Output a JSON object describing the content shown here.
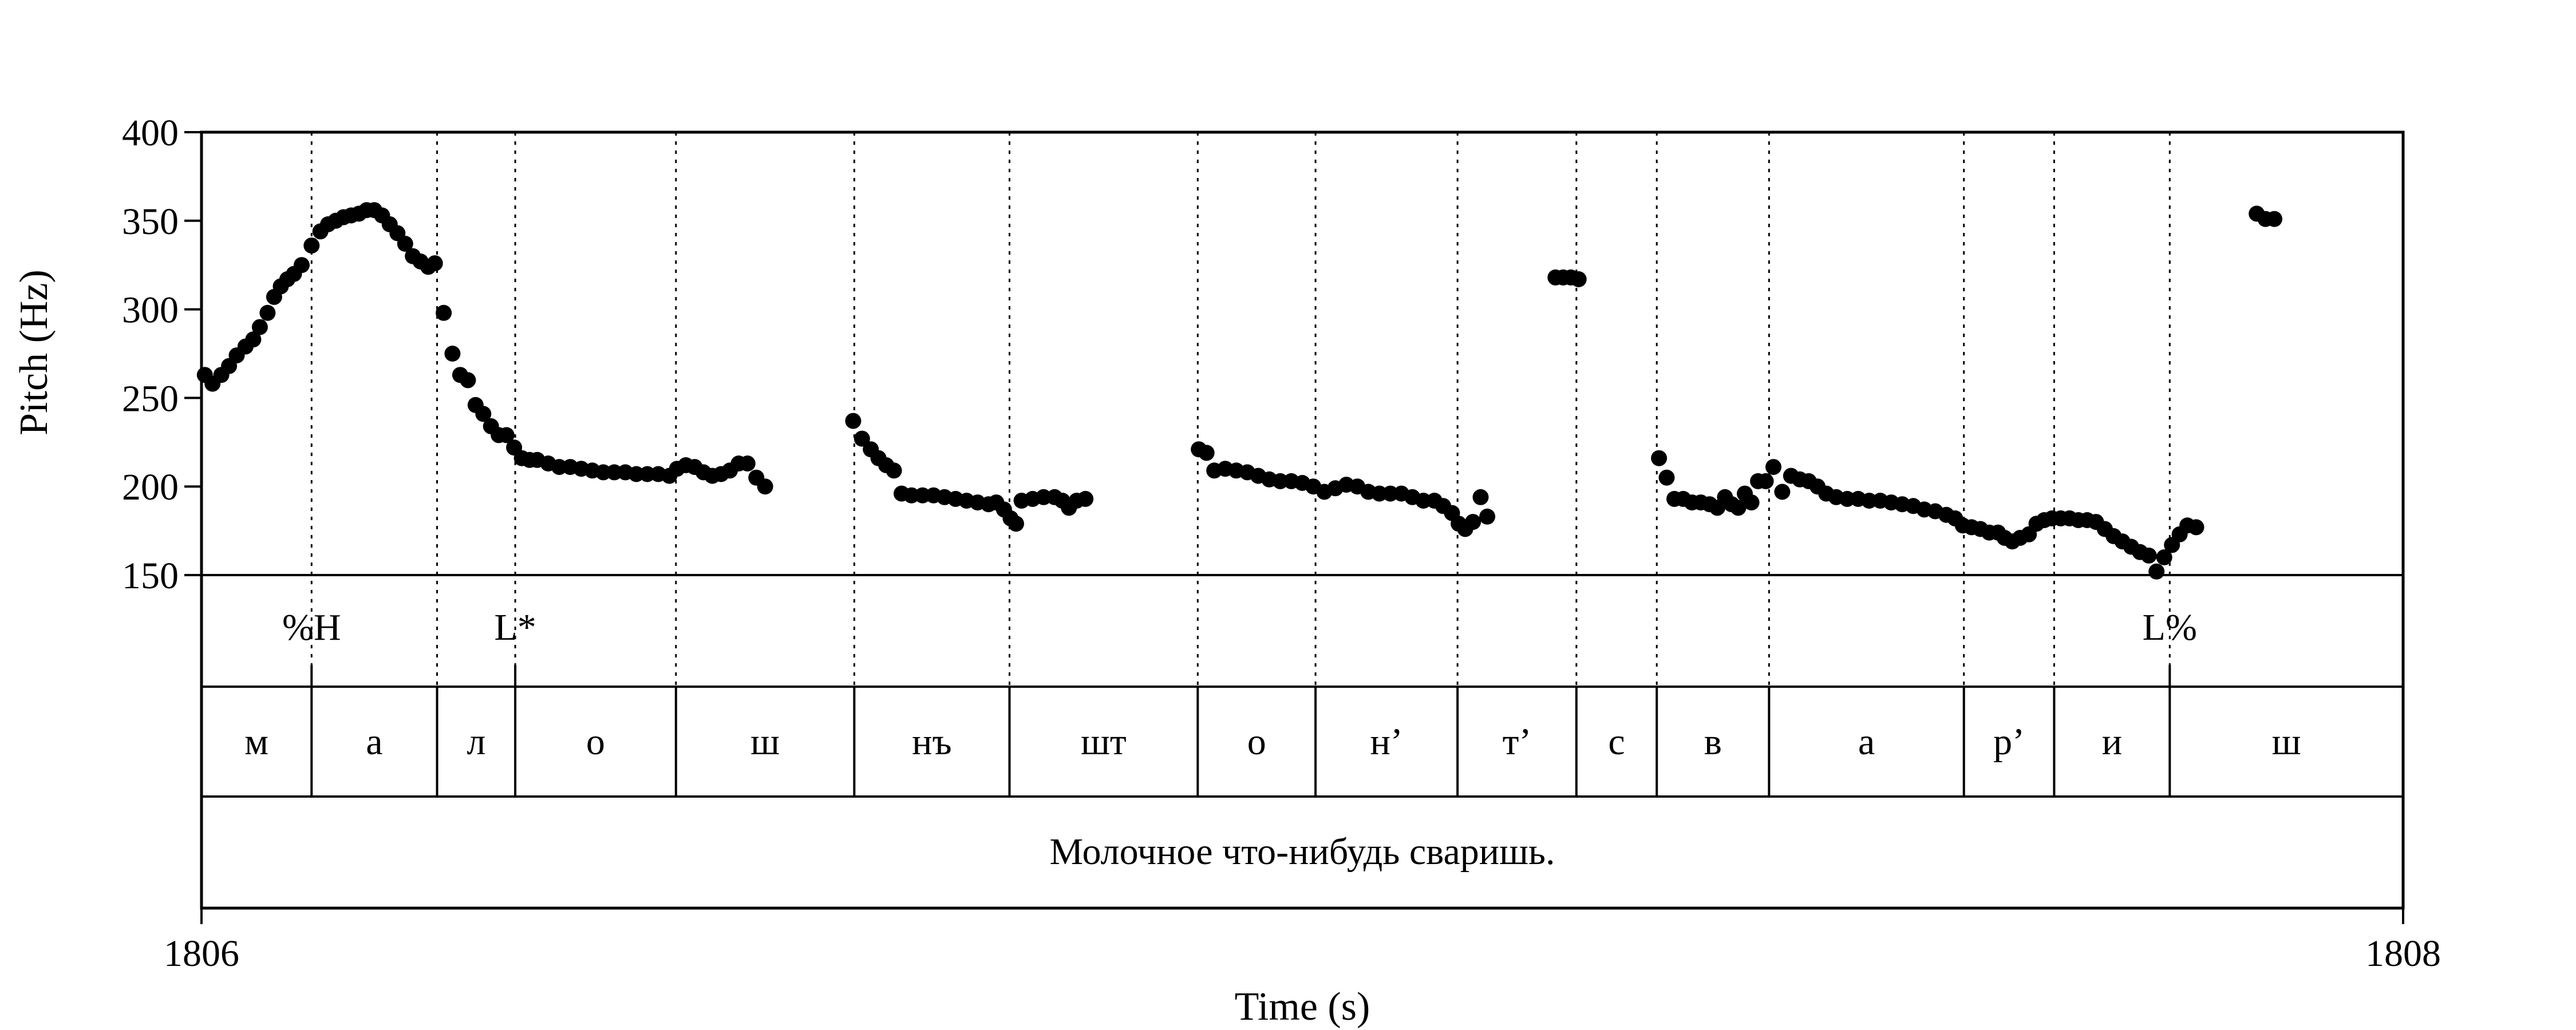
{
  "chart_data": {
    "type": "scatter",
    "xlabel": "Time (s)",
    "ylabel": "Pitch (Hz)",
    "xlim": [
      1806,
      1808
    ],
    "ylim": [
      150,
      400
    ],
    "x_ticks": [
      "1806",
      "1808"
    ],
    "y_ticks": [
      {
        "value": 150,
        "label": "150"
      },
      {
        "value": 200,
        "label": "200"
      },
      {
        "value": 250,
        "label": "250"
      },
      {
        "value": 300,
        "label": "300"
      },
      {
        "value": 350,
        "label": "350"
      },
      {
        "value": 400,
        "label": "400"
      }
    ],
    "grid": false,
    "legend": "none",
    "boundaries": [
      1806.1,
      1806.214,
      1806.285,
      1806.431,
      1806.593,
      1806.734,
      1806.905,
      1807.012,
      1807.141,
      1807.249,
      1807.322,
      1807.424,
      1807.601,
      1807.683,
      1807.788
    ],
    "tones": [
      {
        "time": 1806.1,
        "label": "%H"
      },
      {
        "time": 1806.285,
        "label": "L*"
      },
      {
        "time": 1807.788,
        "label": "L%"
      }
    ],
    "segments": [
      {
        "start": 1806.0,
        "end": 1806.1,
        "label": "м"
      },
      {
        "start": 1806.1,
        "end": 1806.214,
        "label": "а"
      },
      {
        "start": 1806.214,
        "end": 1806.285,
        "label": "л"
      },
      {
        "start": 1806.285,
        "end": 1806.431,
        "label": "о"
      },
      {
        "start": 1806.431,
        "end": 1806.593,
        "label": "ш"
      },
      {
        "start": 1806.593,
        "end": 1806.734,
        "label": "нъ"
      },
      {
        "start": 1806.734,
        "end": 1806.905,
        "label": "шт"
      },
      {
        "start": 1806.905,
        "end": 1807.012,
        "label": "о"
      },
      {
        "start": 1807.012,
        "end": 1807.141,
        "label": "н’"
      },
      {
        "start": 1807.141,
        "end": 1807.249,
        "label": "т’"
      },
      {
        "start": 1807.249,
        "end": 1807.322,
        "label": "с"
      },
      {
        "start": 1807.322,
        "end": 1807.424,
        "label": "в"
      },
      {
        "start": 1807.424,
        "end": 1807.601,
        "label": "а"
      },
      {
        "start": 1807.601,
        "end": 1807.683,
        "label": "р’"
      },
      {
        "start": 1807.683,
        "end": 1807.788,
        "label": "и"
      },
      {
        "start": 1807.788,
        "end": 1808.0,
        "label": "ш"
      }
    ],
    "sentence": "Молочное что-нибудь сваришь.",
    "series": [
      {
        "values": [
          [
            1806.003,
            263
          ],
          [
            1806.01,
            258
          ],
          [
            1806.018,
            263
          ],
          [
            1806.025,
            268
          ],
          [
            1806.032,
            274
          ],
          [
            1806.04,
            279
          ],
          [
            1806.047,
            283
          ],
          [
            1806.053,
            290
          ],
          [
            1806.06,
            298
          ],
          [
            1806.066,
            307
          ],
          [
            1806.072,
            313
          ],
          [
            1806.078,
            317
          ],
          [
            1806.084,
            320
          ],
          [
            1806.091,
            325
          ],
          [
            1806.1,
            336
          ],
          [
            1806.108,
            344
          ],
          [
            1806.115,
            348
          ],
          [
            1806.122,
            350
          ],
          [
            1806.129,
            352
          ],
          [
            1806.136,
            353
          ],
          [
            1806.143,
            354
          ],
          [
            1806.15,
            356
          ],
          [
            1806.157,
            356
          ],
          [
            1806.164,
            353
          ],
          [
            1806.171,
            348
          ],
          [
            1806.178,
            343
          ],
          [
            1806.185,
            337
          ],
          [
            1806.192,
            330
          ],
          [
            1806.199,
            327
          ],
          [
            1806.206,
            324
          ],
          [
            1806.212,
            326
          ],
          [
            1806.22,
            298
          ],
          [
            1806.228,
            275
          ],
          [
            1806.235,
            263
          ],
          [
            1806.242,
            260
          ],
          [
            1806.249,
            246
          ],
          [
            1806.256,
            241
          ],
          [
            1806.263,
            234
          ],
          [
            1806.27,
            229
          ],
          [
            1806.277,
            229
          ],
          [
            1806.284,
            222
          ],
          [
            1806.291,
            216
          ],
          [
            1806.298,
            215
          ],
          [
            1806.305,
            215
          ],
          [
            1806.315,
            213
          ],
          [
            1806.325,
            211
          ],
          [
            1806.335,
            211
          ],
          [
            1806.345,
            210
          ],
          [
            1806.355,
            209
          ],
          [
            1806.365,
            208
          ],
          [
            1806.375,
            208
          ],
          [
            1806.385,
            208
          ],
          [
            1806.395,
            207
          ],
          [
            1806.405,
            207
          ],
          [
            1806.415,
            207
          ],
          [
            1806.425,
            206
          ],
          [
            1806.432,
            210
          ],
          [
            1806.44,
            212
          ],
          [
            1806.448,
            211
          ],
          [
            1806.456,
            208
          ],
          [
            1806.464,
            206
          ],
          [
            1806.472,
            207
          ],
          [
            1806.48,
            209
          ],
          [
            1806.488,
            213
          ],
          [
            1806.496,
            213
          ],
          [
            1806.504,
            205
          ],
          [
            1806.512,
            200
          ],
          [
            1806.592,
            237
          ],
          [
            1806.6,
            227
          ],
          [
            1806.608,
            221
          ],
          [
            1806.615,
            216
          ],
          [
            1806.622,
            212
          ],
          [
            1806.629,
            209
          ],
          [
            1806.636,
            196
          ],
          [
            1806.645,
            195
          ],
          [
            1806.655,
            195
          ],
          [
            1806.665,
            195
          ],
          [
            1806.675,
            194
          ],
          [
            1806.685,
            193
          ],
          [
            1806.695,
            192
          ],
          [
            1806.705,
            191
          ],
          [
            1806.715,
            190
          ],
          [
            1806.722,
            191
          ],
          [
            1806.729,
            187
          ],
          [
            1806.735,
            182
          ],
          [
            1806.74,
            179
          ],
          [
            1806.745,
            192
          ],
          [
            1806.755,
            193
          ],
          [
            1806.765,
            194
          ],
          [
            1806.775,
            194
          ],
          [
            1806.782,
            192
          ],
          [
            1806.788,
            188
          ],
          [
            1806.795,
            192
          ],
          [
            1806.803,
            193
          ],
          [
            1806.906,
            221
          ],
          [
            1806.913,
            219
          ],
          [
            1806.92,
            209
          ],
          [
            1806.93,
            210
          ],
          [
            1806.94,
            209
          ],
          [
            1806.95,
            208
          ],
          [
            1806.96,
            206
          ],
          [
            1806.97,
            204
          ],
          [
            1806.98,
            203
          ],
          [
            1806.99,
            203
          ],
          [
            1807.0,
            202
          ],
          [
            1807.01,
            200
          ],
          [
            1807.02,
            197
          ],
          [
            1807.03,
            199
          ],
          [
            1807.04,
            201
          ],
          [
            1807.05,
            200
          ],
          [
            1807.06,
            197
          ],
          [
            1807.07,
            196
          ],
          [
            1807.08,
            196
          ],
          [
            1807.09,
            196
          ],
          [
            1807.1,
            194
          ],
          [
            1807.11,
            192
          ],
          [
            1807.12,
            192
          ],
          [
            1807.128,
            189
          ],
          [
            1807.136,
            185
          ],
          [
            1807.142,
            179
          ],
          [
            1807.148,
            176
          ],
          [
            1807.155,
            180
          ],
          [
            1807.162,
            194
          ],
          [
            1807.168,
            183
          ],
          [
            1807.23,
            318
          ],
          [
            1807.237,
            318
          ],
          [
            1807.244,
            318
          ],
          [
            1807.251,
            317
          ],
          [
            1807.324,
            216
          ],
          [
            1807.331,
            205
          ],
          [
            1807.338,
            193
          ],
          [
            1807.346,
            193
          ],
          [
            1807.354,
            191
          ],
          [
            1807.362,
            191
          ],
          [
            1807.37,
            190
          ],
          [
            1807.377,
            188
          ],
          [
            1807.384,
            194
          ],
          [
            1807.39,
            190
          ],
          [
            1807.396,
            188
          ],
          [
            1807.402,
            196
          ],
          [
            1807.408,
            191
          ],
          [
            1807.414,
            203
          ],
          [
            1807.421,
            203
          ],
          [
            1807.428,
            211
          ],
          [
            1807.436,
            197
          ],
          [
            1807.444,
            206
          ],
          [
            1807.452,
            204
          ],
          [
            1807.46,
            203
          ],
          [
            1807.468,
            200
          ],
          [
            1807.476,
            196
          ],
          [
            1807.485,
            194
          ],
          [
            1807.495,
            193
          ],
          [
            1807.505,
            193
          ],
          [
            1807.515,
            192
          ],
          [
            1807.525,
            192
          ],
          [
            1807.535,
            191
          ],
          [
            1807.545,
            190
          ],
          [
            1807.555,
            189
          ],
          [
            1807.565,
            187
          ],
          [
            1807.575,
            186
          ],
          [
            1807.585,
            184
          ],
          [
            1807.593,
            182
          ],
          [
            1807.6,
            178
          ],
          [
            1807.608,
            177
          ],
          [
            1807.616,
            176
          ],
          [
            1807.624,
            174
          ],
          [
            1807.632,
            174
          ],
          [
            1807.638,
            171
          ],
          [
            1807.645,
            169
          ],
          [
            1807.652,
            171
          ],
          [
            1807.66,
            173
          ],
          [
            1807.667,
            179
          ],
          [
            1807.674,
            181
          ],
          [
            1807.681,
            182
          ],
          [
            1807.689,
            182
          ],
          [
            1807.697,
            182
          ],
          [
            1807.705,
            181
          ],
          [
            1807.713,
            181
          ],
          [
            1807.721,
            180
          ],
          [
            1807.729,
            176
          ],
          [
            1807.737,
            172
          ],
          [
            1807.745,
            169
          ],
          [
            1807.753,
            166
          ],
          [
            1807.761,
            163
          ],
          [
            1807.769,
            161
          ],
          [
            1807.776,
            152
          ],
          [
            1807.783,
            160
          ],
          [
            1807.79,
            167
          ],
          [
            1807.797,
            173
          ],
          [
            1807.804,
            178
          ],
          [
            1807.812,
            177
          ],
          [
            1807.867,
            354
          ],
          [
            1807.875,
            351
          ],
          [
            1807.883,
            351
          ]
        ]
      }
    ]
  }
}
